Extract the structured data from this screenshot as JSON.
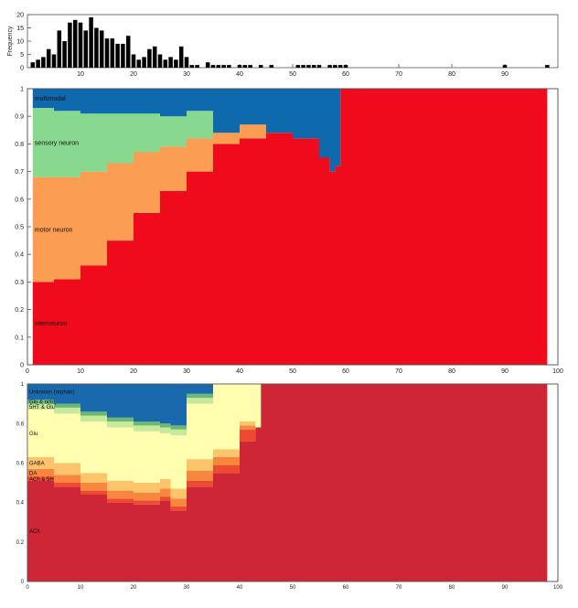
{
  "chart_data": [
    {
      "type": "bar",
      "ylabel": "Frequency",
      "xlim": [
        0,
        100
      ],
      "ylim": [
        0,
        20
      ],
      "xticks": [
        10,
        20,
        30,
        40,
        50,
        60,
        70,
        80,
        90
      ],
      "yticks": [
        0,
        5,
        10,
        15,
        20
      ],
      "x": [
        1,
        2,
        3,
        4,
        5,
        6,
        7,
        8,
        9,
        10,
        11,
        12,
        13,
        14,
        15,
        16,
        17,
        18,
        19,
        20,
        21,
        22,
        23,
        24,
        25,
        26,
        27,
        28,
        29,
        30,
        31,
        32,
        34,
        35,
        36,
        37,
        38,
        40,
        41,
        42,
        44,
        46,
        51,
        52,
        53,
        54,
        55,
        57,
        58,
        59,
        60,
        90,
        98
      ],
      "values": [
        2,
        3,
        4,
        7,
        5,
        14,
        10,
        17,
        18,
        17,
        14,
        19,
        15,
        14,
        11,
        11,
        9,
        9,
        12,
        5,
        3,
        4,
        7,
        8,
        5,
        3,
        4,
        3,
        8,
        4,
        1,
        1,
        2,
        1,
        1,
        1,
        1,
        1,
        1,
        1,
        1,
        1,
        1,
        1,
        1,
        1,
        1,
        1,
        1,
        1,
        1,
        1,
        1
      ]
    },
    {
      "type": "area",
      "stacked": true,
      "xlim": [
        0,
        100
      ],
      "ylim": [
        0,
        1
      ],
      "xticks": [
        0,
        10,
        20,
        30,
        40,
        50,
        60,
        70,
        80,
        90,
        100
      ],
      "yticks": [
        0,
        0.1,
        0.2,
        0.3,
        0.4,
        0.5,
        0.6,
        0.7,
        0.8,
        0.9,
        1
      ],
      "x": [
        1,
        5,
        10,
        15,
        20,
        25,
        30,
        35,
        40,
        45,
        50,
        55,
        57,
        58,
        59,
        98
      ],
      "series": [
        {
          "name": "interneuron",
          "color": "#ef0b1c",
          "values": [
            0.3,
            0.31,
            0.36,
            0.45,
            0.55,
            0.63,
            0.7,
            0.8,
            0.82,
            0.84,
            0.82,
            0.75,
            0.7,
            0.72,
            1.0,
            1.0
          ]
        },
        {
          "name": "motor neuron",
          "color": "#fb9d52",
          "values": [
            0.38,
            0.37,
            0.34,
            0.28,
            0.22,
            0.16,
            0.12,
            0.04,
            0.05,
            0.0,
            0.0,
            0.0,
            0.0,
            0.0,
            0.0,
            0.0
          ]
        },
        {
          "name": "sensory neuron",
          "color": "#88d890",
          "values": [
            0.25,
            0.24,
            0.21,
            0.18,
            0.14,
            0.11,
            0.1,
            0.0,
            0.0,
            0.0,
            0.0,
            0.0,
            0.0,
            0.0,
            0.0,
            0.0
          ]
        },
        {
          "name": "multimodal",
          "color": "#0e6aad",
          "values": [
            0.07,
            0.08,
            0.09,
            0.09,
            0.09,
            0.1,
            0.08,
            0.16,
            0.13,
            0.16,
            0.18,
            0.25,
            0.3,
            0.28,
            0.0,
            0.0
          ]
        }
      ]
    },
    {
      "type": "area",
      "stacked": true,
      "xlim": [
        0,
        100
      ],
      "ylim": [
        0,
        1
      ],
      "xticks": [
        0,
        10,
        20,
        30,
        40,
        50,
        60,
        70,
        80,
        90,
        100
      ],
      "yticks": [
        0,
        0.2,
        0.4,
        0.6,
        0.8,
        1
      ],
      "x": [
        0,
        5,
        10,
        15,
        20,
        25,
        27,
        30,
        35,
        40,
        43,
        44,
        98
      ],
      "series": [
        {
          "name": "ACh",
          "color": "#ce2637",
          "values": [
            0.51,
            0.48,
            0.44,
            0.4,
            0.39,
            0.41,
            0.36,
            0.48,
            0.55,
            0.71,
            0.78,
            1.0,
            1.0
          ]
        },
        {
          "name": "ACh & 5HT",
          "color": "#ed4a2f",
          "values": [
            0.02,
            0.02,
            0.02,
            0.02,
            0.02,
            0.02,
            0.02,
            0.03,
            0.04,
            0.06,
            0.0,
            0.0,
            0.0
          ]
        },
        {
          "name": "DA",
          "color": "#f8863f",
          "values": [
            0.04,
            0.04,
            0.04,
            0.04,
            0.04,
            0.04,
            0.04,
            0.05,
            0.04,
            0.02,
            0.0,
            0.0,
            0.0
          ]
        },
        {
          "name": "GABA",
          "color": "#fdc46b",
          "values": [
            0.06,
            0.06,
            0.05,
            0.05,
            0.05,
            0.05,
            0.05,
            0.06,
            0.04,
            0.02,
            0.0,
            0.0,
            0.0
          ]
        },
        {
          "name": "Glu",
          "color": "#ffffaf",
          "values": [
            0.24,
            0.25,
            0.26,
            0.27,
            0.26,
            0.23,
            0.27,
            0.28,
            0.33,
            0.19,
            0.22,
            0.0,
            0.0
          ]
        },
        {
          "name": "5HT & Glu",
          "color": "#c8e89a",
          "values": [
            0.03,
            0.03,
            0.03,
            0.03,
            0.03,
            0.03,
            0.03,
            0.03,
            0.0,
            0.0,
            0.0,
            0.0,
            0.0
          ]
        },
        {
          "name": "Glu & octopamine",
          "color": "#6ab873",
          "values": [
            0.02,
            0.02,
            0.02,
            0.02,
            0.02,
            0.02,
            0.02,
            0.02,
            0.0,
            0.0,
            0.0,
            0.0,
            0.0
          ]
        },
        {
          "name": "Unknown (orphan)",
          "color": "#1b69ad",
          "values": [
            0.08,
            0.1,
            0.14,
            0.17,
            0.19,
            0.2,
            0.21,
            0.05,
            0.0,
            0.0,
            0.0,
            0.0,
            0.0
          ]
        }
      ]
    }
  ]
}
